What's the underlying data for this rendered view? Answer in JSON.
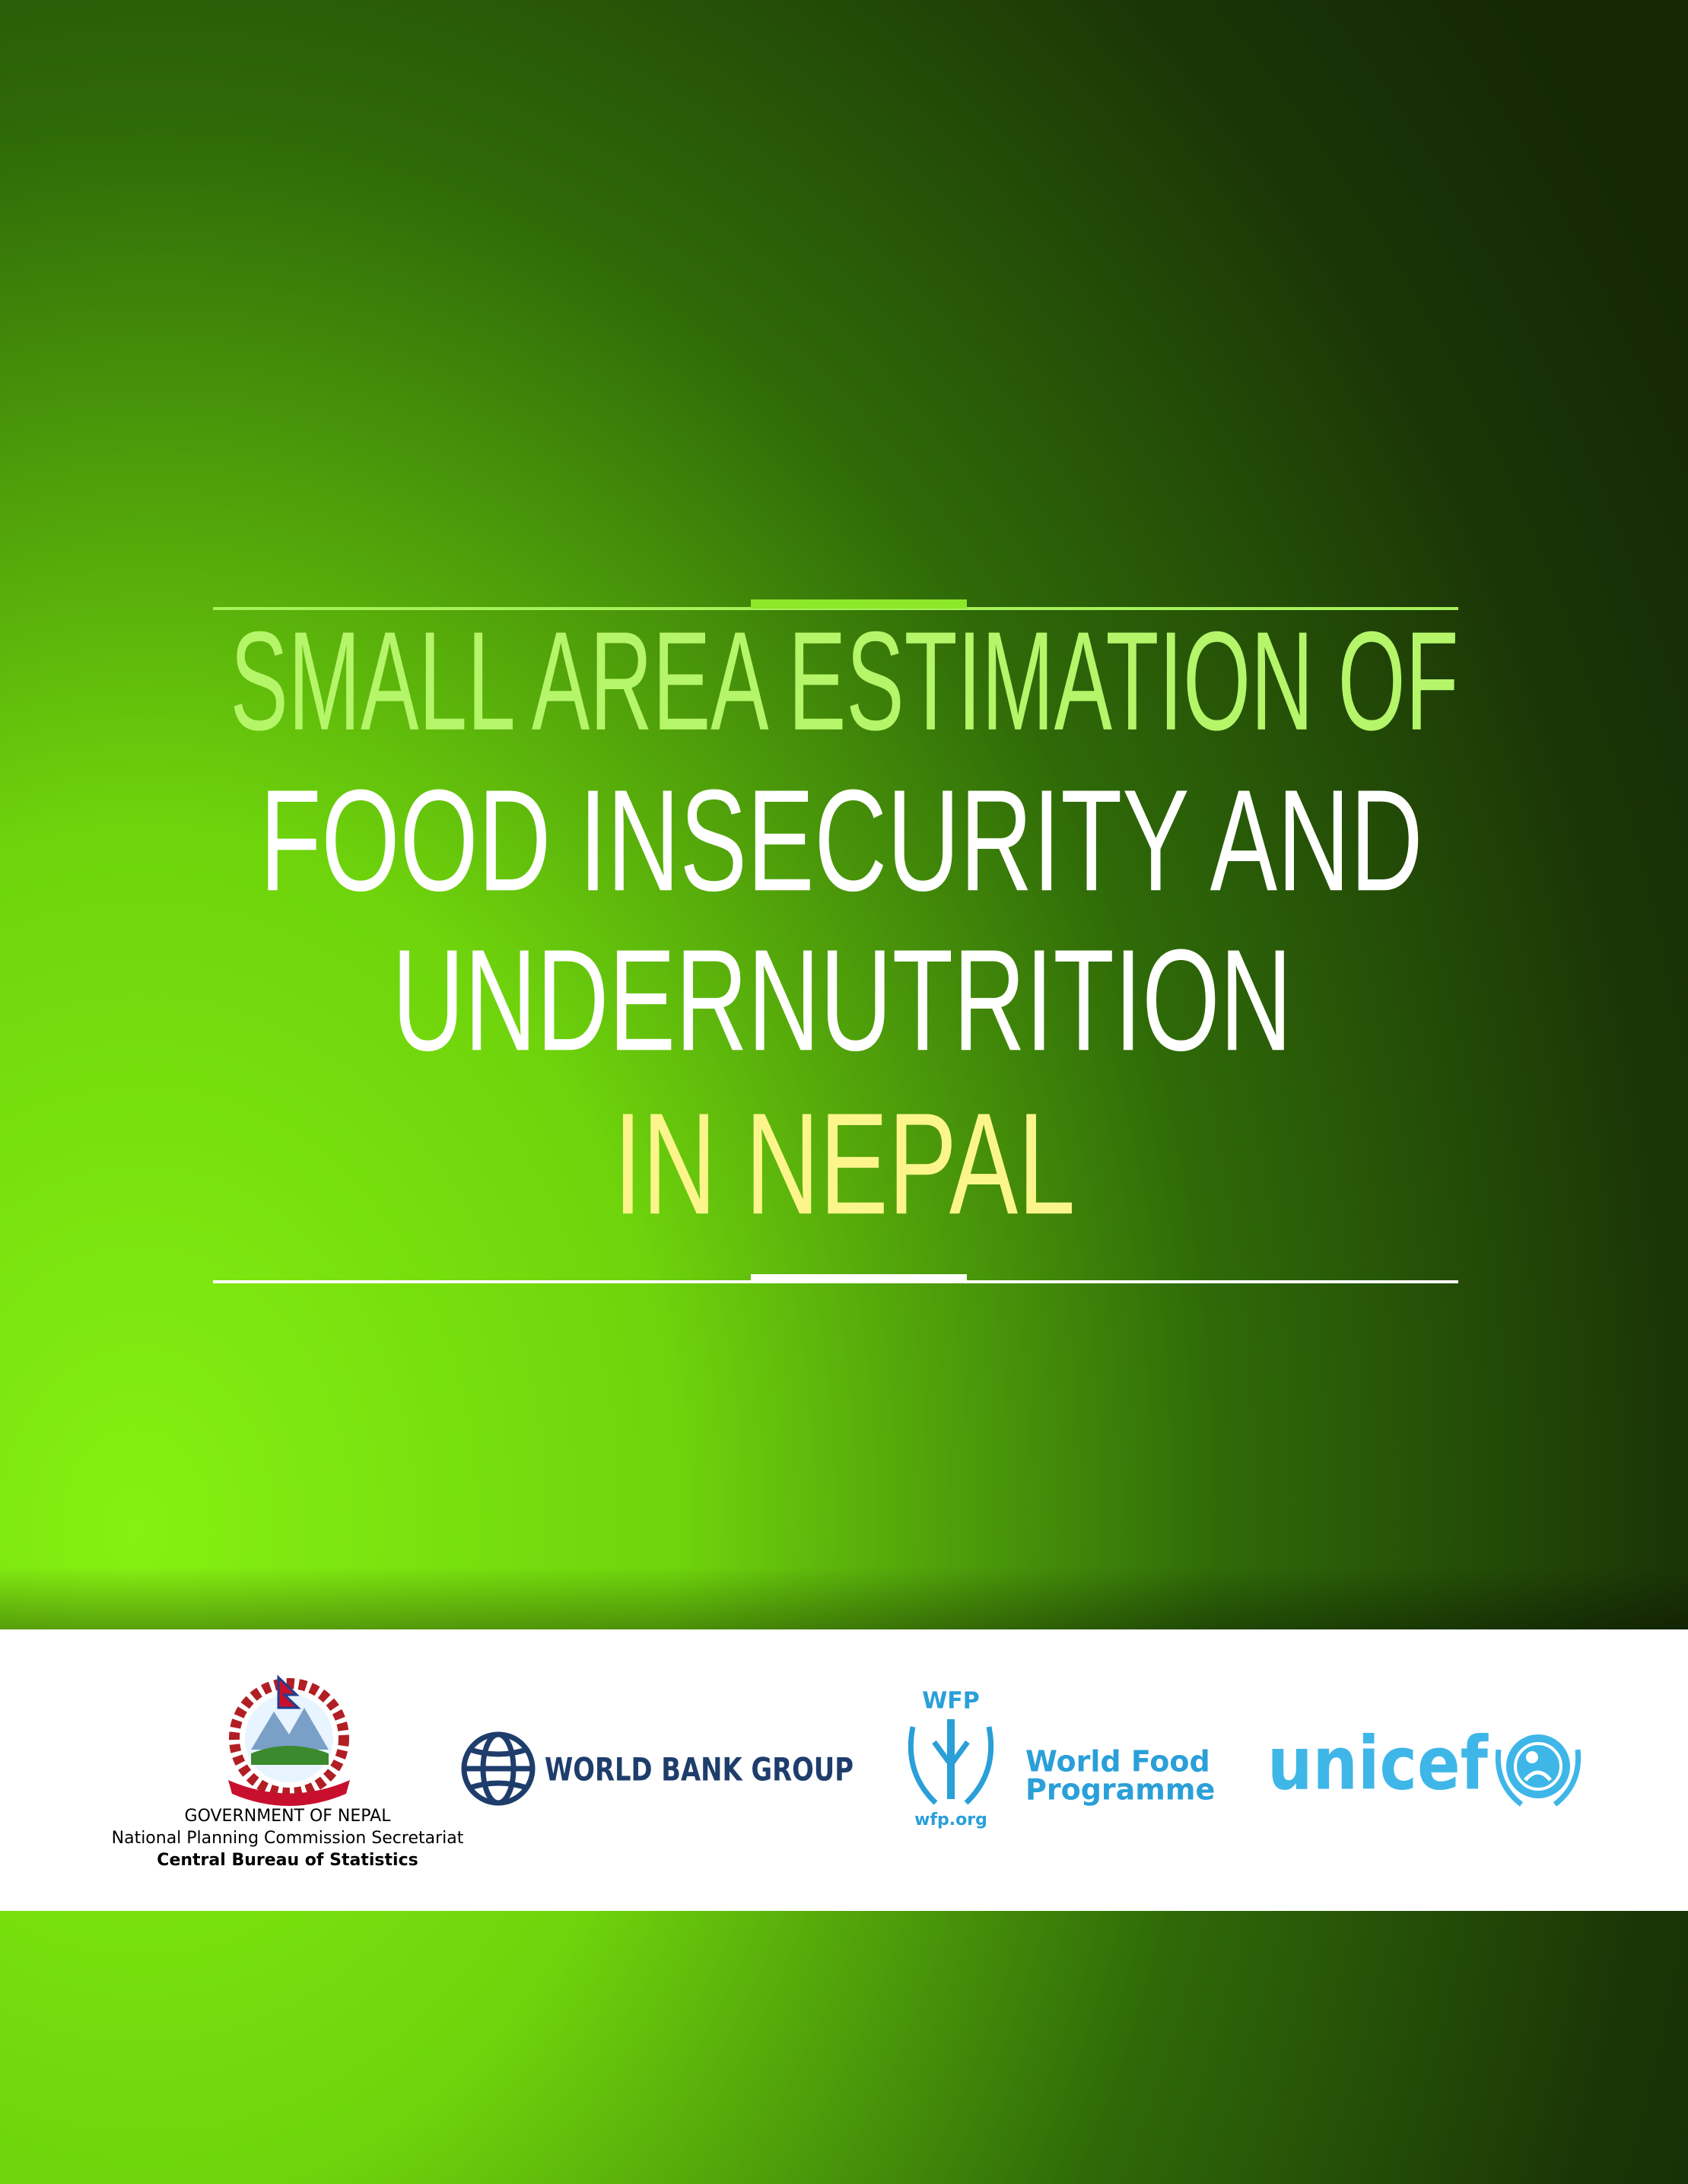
{
  "title": {
    "line1": "SMALL AREA ESTIMATION OF",
    "line2": "FOOD INSECURITY AND",
    "line3": "UNDERNUTRITION",
    "line4": "IN NEPAL"
  },
  "logos": {
    "government": {
      "line1": "GOVERNMENT OF NEPAL",
      "line2": "National Planning Commission Secretariat",
      "line3": "Central Bureau of Statistics"
    },
    "world_bank": {
      "name": "WORLD BANK GROUP"
    },
    "wfp": {
      "acronym": "WFP",
      "line1": "World Food",
      "line2": "Programme",
      "url": "wfp.org"
    },
    "unicef": {
      "name": "unicef"
    }
  }
}
